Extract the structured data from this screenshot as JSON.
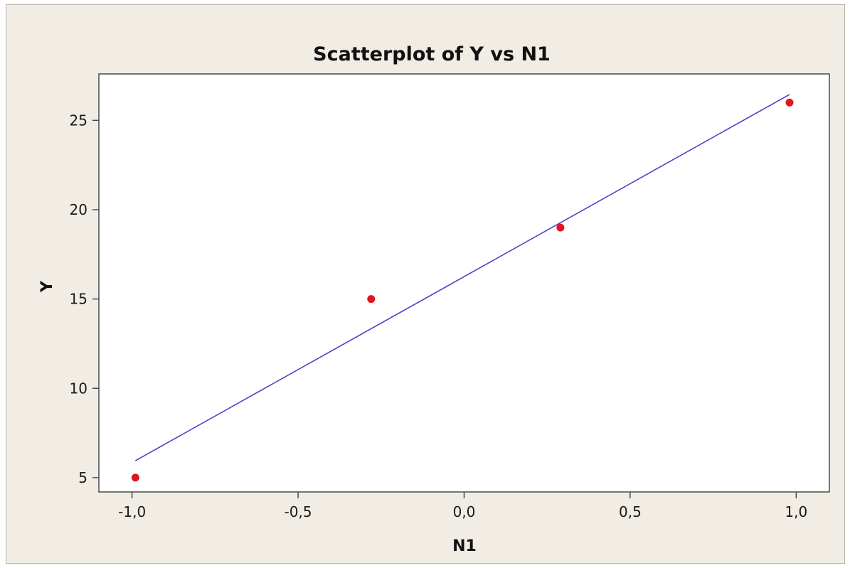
{
  "chart_data": {
    "type": "scatter",
    "title": "Scatterplot of Y vs N1",
    "xlabel": "N1",
    "ylabel": "Y",
    "xlim": [
      -1.1,
      1.1
    ],
    "ylim": [
      4.2,
      27.6
    ],
    "x_ticks": [
      -1.0,
      -0.5,
      0.0,
      0.5,
      1.0
    ],
    "x_tick_labels": [
      "-1,0",
      "-0,5",
      "0,0",
      "0,5",
      "1,0"
    ],
    "y_ticks": [
      5,
      10,
      15,
      20,
      25
    ],
    "y_tick_labels": [
      "5",
      "10",
      "15",
      "20",
      "25"
    ],
    "grid": false,
    "legend": false,
    "series": [
      {
        "points": [
          {
            "x": -0.99,
            "y": 5
          },
          {
            "x": -0.28,
            "y": 15
          },
          {
            "x": 0.29,
            "y": 19
          },
          {
            "x": 0.98,
            "y": 26
          }
        ],
        "color": "#e0141e",
        "marker": "circle"
      }
    ],
    "fit_line": {
      "x": [
        -0.99,
        0.98
      ],
      "y": [
        5.95,
        26.45
      ],
      "color": "#4a45c8"
    },
    "colors": {
      "background": "#f1ece4",
      "plot_area": "#ffffff",
      "axis": "#4a4a4a"
    }
  }
}
